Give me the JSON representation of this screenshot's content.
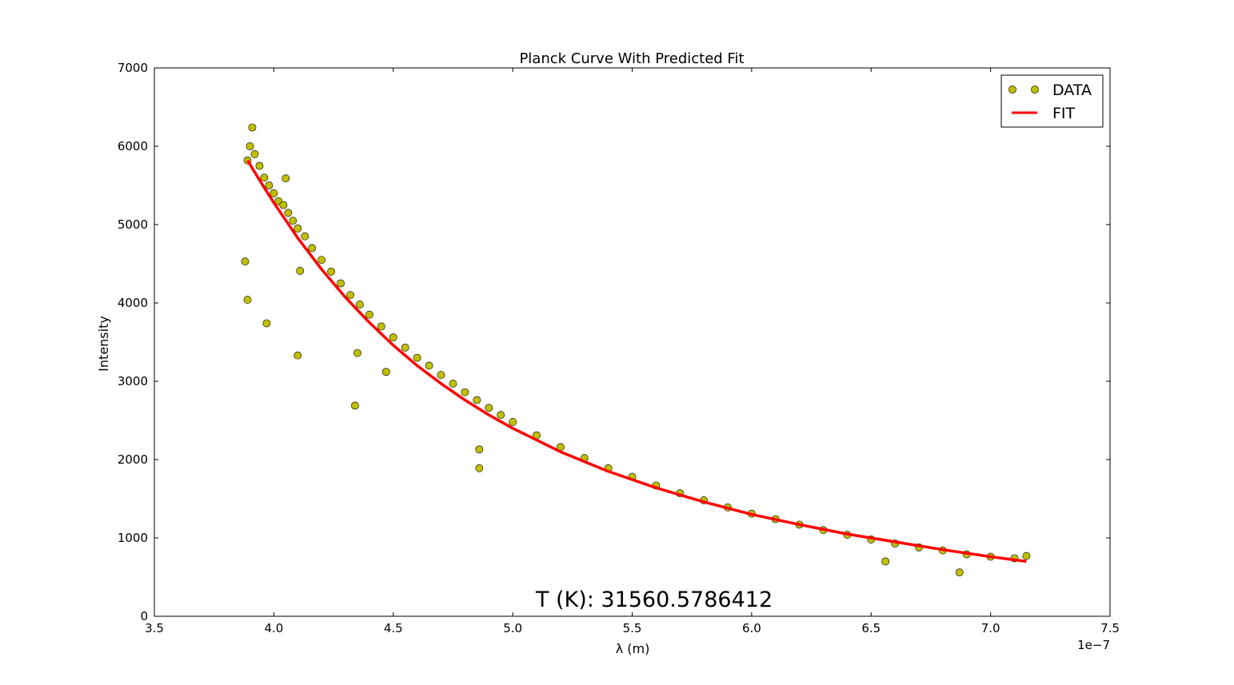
{
  "chart_data": {
    "type": "scatter",
    "title": "Planck Curve With Predicted Fit",
    "xlabel": "λ (m)",
    "ylabel": "Intensity",
    "x_offset_label": "1e−7",
    "xlim": [
      3.5e-07,
      7.5e-07
    ],
    "ylim": [
      0,
      7000
    ],
    "x_ticks": [
      3.5e-07,
      4e-07,
      4.5e-07,
      5e-07,
      5.5e-07,
      6e-07,
      6.5e-07,
      7e-07,
      7.5e-07
    ],
    "x_tick_labels": [
      "3.5",
      "4.0",
      "4.5",
      "5.0",
      "5.5",
      "6.0",
      "6.5",
      "7.0",
      "7.5"
    ],
    "y_ticks": [
      0,
      1000,
      2000,
      3000,
      4000,
      5000,
      6000,
      7000
    ],
    "y_tick_labels": [
      "0",
      "1000",
      "2000",
      "3000",
      "4000",
      "5000",
      "6000",
      "7000"
    ],
    "grid": false,
    "legend_position": "top-right",
    "annotation": "T (K): 31560.5786412",
    "series": [
      {
        "name": "DATA",
        "kind": "scatter",
        "color": "#bfbf00",
        "edge_color": "#000000",
        "x": [
          3.89e-07,
          3.9e-07,
          3.92e-07,
          3.94e-07,
          3.96e-07,
          3.98e-07,
          4e-07,
          4.02e-07,
          4.04e-07,
          4.06e-07,
          4.08e-07,
          4.1e-07,
          4.13e-07,
          4.16e-07,
          4.2e-07,
          4.24e-07,
          4.28e-07,
          4.32e-07,
          4.36e-07,
          4.4e-07,
          4.45e-07,
          4.5e-07,
          4.55e-07,
          4.6e-07,
          4.65e-07,
          4.7e-07,
          4.75e-07,
          4.8e-07,
          4.85e-07,
          4.9e-07,
          4.95e-07,
          5e-07,
          5.1e-07,
          5.2e-07,
          5.3e-07,
          5.4e-07,
          5.5e-07,
          5.6e-07,
          5.7e-07,
          5.8e-07,
          5.9e-07,
          6e-07,
          6.1e-07,
          6.2e-07,
          6.3e-07,
          6.4e-07,
          6.5e-07,
          6.6e-07,
          6.7e-07,
          6.8e-07,
          6.9e-07,
          7e-07,
          7.1e-07,
          7.15e-07,
          3.88e-07,
          3.89e-07,
          3.97e-07,
          4.1e-07,
          4.34e-07,
          4.47e-07,
          4.86e-07,
          6.56e-07,
          6.87e-07,
          3.91e-07,
          4.05e-07,
          4.11e-07,
          4.35e-07,
          4.86e-07
        ],
        "y": [
          5820,
          6000,
          5900,
          5750,
          5600,
          5500,
          5400,
          5300,
          5250,
          5150,
          5050,
          4950,
          4850,
          4700,
          4550,
          4400,
          4250,
          4100,
          3980,
          3850,
          3700,
          3560,
          3430,
          3300,
          3200,
          3080,
          2970,
          2860,
          2760,
          2660,
          2570,
          2480,
          2310,
          2160,
          2020,
          1890,
          1780,
          1670,
          1570,
          1480,
          1390,
          1310,
          1240,
          1170,
          1100,
          1040,
          980,
          930,
          880,
          840,
          790,
          760,
          740,
          770,
          4530,
          4040,
          3740,
          3330,
          2690,
          3120,
          1890,
          700,
          560,
          6240,
          5590,
          4410,
          3360,
          2130
        ]
      },
      {
        "name": "FIT",
        "kind": "line",
        "color": "#ff0000",
        "x": [
          3.89e-07,
          3.95e-07,
          4e-07,
          4.1e-07,
          4.2e-07,
          4.3e-07,
          4.4e-07,
          4.5e-07,
          4.6e-07,
          4.7e-07,
          4.8e-07,
          4.9e-07,
          5e-07,
          5.2e-07,
          5.4e-07,
          5.6e-07,
          5.8e-07,
          6e-07,
          6.2e-07,
          6.4e-07,
          6.6e-07,
          6.8e-07,
          7e-07,
          7.15e-07
        ],
        "y": [
          5820,
          5520,
          5280,
          4830,
          4430,
          4070,
          3750,
          3460,
          3200,
          2970,
          2760,
          2570,
          2400,
          2100,
          1850,
          1640,
          1460,
          1300,
          1170,
          1050,
          950,
          850,
          760,
          700
        ]
      }
    ]
  }
}
